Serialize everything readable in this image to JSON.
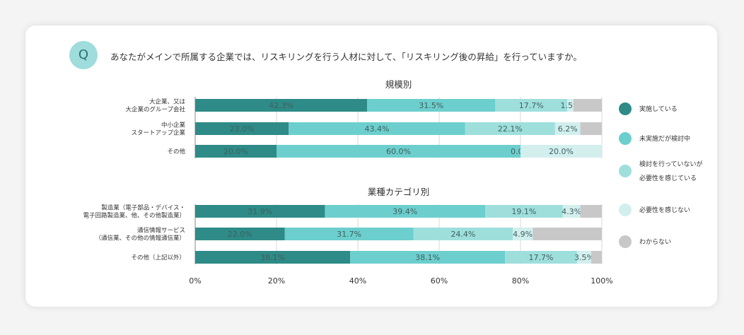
{
  "question": {
    "badge": "Q",
    "text": "あなたがメインで所属する企業では、リスキリングを行う人材に対して、「リスキリング後の昇給」を行っていますか。"
  },
  "chart_data": {
    "type": "bar",
    "orientation": "horizontal-stacked-100",
    "x_ticks": [
      "0%",
      "20%",
      "40%",
      "60%",
      "80%",
      "100%"
    ],
    "xlim": [
      0,
      100
    ],
    "series": [
      {
        "name": "実施している",
        "color": "#2e8b87"
      },
      {
        "name": "未実施だが検討中",
        "color": "#6ccfcd"
      },
      {
        "name": "検討を行っていないが\n必要性を感じている",
        "color": "#9edfdc"
      },
      {
        "name": "必要性を感じない",
        "color": "#d2efee"
      },
      {
        "name": "わからない",
        "color": "#c8c8c8"
      }
    ],
    "groups": [
      {
        "title": "規模別",
        "rows": [
          {
            "label": "大企業、又は\n大企業のグループ会社",
            "values": [
              42.3,
              31.5,
              17.7,
              1.5,
              7.0
            ],
            "labels": [
              "42.3%",
              "31.5%",
              "17.7%",
              "1.5%",
              ""
            ]
          },
          {
            "label": "中小企業\nスタートアップ企業",
            "values": [
              23.0,
              43.4,
              22.1,
              6.2,
              5.3
            ],
            "labels": [
              "23.0%",
              "43.4%",
              "22.1%",
              "6.2%",
              ""
            ]
          },
          {
            "label": "その他",
            "values": [
              20.0,
              60.0,
              0.0,
              20.0,
              0.0
            ],
            "labels": [
              "20.0%",
              "60.0%",
              "0.0%",
              "20.0%",
              ""
            ]
          }
        ]
      },
      {
        "title": "業種カテゴリ別",
        "rows": [
          {
            "label": "製造業（電子部品・デバイス・\n電子回路製造業、他、その他製造業）",
            "values": [
              31.9,
              39.4,
              19.1,
              4.3,
              5.3
            ],
            "labels": [
              "31.9%",
              "39.4%",
              "19.1%",
              "4.3%",
              ""
            ]
          },
          {
            "label": "通信情報サービス\n（通信業、その他の情報通信業）",
            "values": [
              22.0,
              31.7,
              24.4,
              4.9,
              17.0
            ],
            "labels": [
              "22.0%",
              "31.7%",
              "24.4%",
              "4.9%",
              ""
            ]
          },
          {
            "label": "その他（上記以外）",
            "values": [
              38.1,
              38.1,
              17.7,
              3.5,
              2.6
            ],
            "labels": [
              "38.1%",
              "38.1%",
              "17.7%",
              "3.5%",
              ""
            ]
          }
        ]
      }
    ]
  }
}
